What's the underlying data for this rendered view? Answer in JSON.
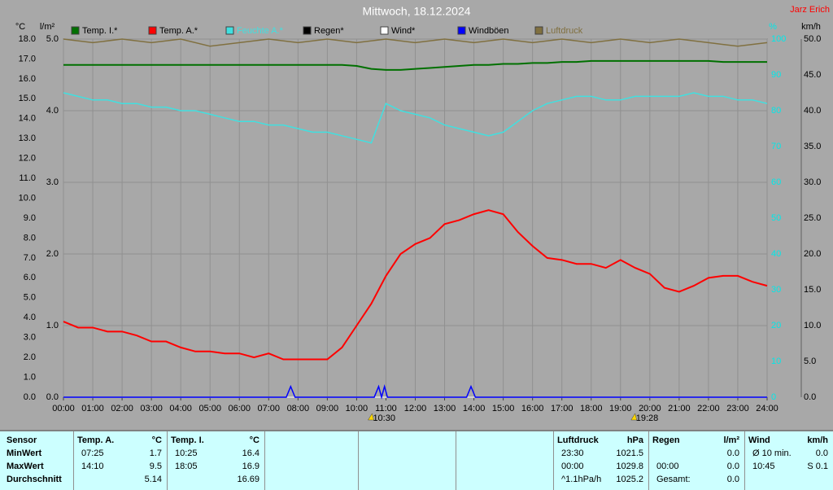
{
  "chart_data": {
    "type": "line",
    "title": "Mittwoch, 18.12.2024",
    "author": "Jarz Erich",
    "x": [
      0,
      0.5,
      1,
      1.5,
      2,
      2.5,
      3,
      3.5,
      4,
      4.5,
      5,
      5.5,
      6,
      6.5,
      7,
      7.5,
      8,
      8.5,
      9,
      9.5,
      10,
      10.5,
      11,
      11.5,
      12,
      12.5,
      13,
      13.5,
      14,
      14.5,
      15,
      15.5,
      16,
      16.5,
      17,
      17.5,
      18,
      18.5,
      19,
      19.5,
      20,
      20.5,
      21,
      21.5,
      22,
      22.5,
      23,
      23.5,
      24
    ],
    "xlim": [
      0,
      24
    ],
    "xticks": [
      {
        "value": 0,
        "label": "00:00"
      },
      {
        "value": 1,
        "label": "01:00"
      },
      {
        "value": 2,
        "label": "02:00"
      },
      {
        "value": 3,
        "label": "03:00"
      },
      {
        "value": 4,
        "label": "04:00"
      },
      {
        "value": 5,
        "label": "05:00"
      },
      {
        "value": 6,
        "label": "06:00"
      },
      {
        "value": 7,
        "label": "07:00"
      },
      {
        "value": 8,
        "label": "08:00"
      },
      {
        "value": 9,
        "label": "09:00"
      },
      {
        "value": 10,
        "label": "10:00"
      },
      {
        "value": 11,
        "label": "11:00"
      },
      {
        "value": 12,
        "label": "12:00"
      },
      {
        "value": 13,
        "label": "13:00"
      },
      {
        "value": 14,
        "label": "14:00"
      },
      {
        "value": 15,
        "label": "15:00"
      },
      {
        "value": 16,
        "label": "16:00"
      },
      {
        "value": 17,
        "label": "17:00"
      },
      {
        "value": 18,
        "label": "18:00"
      },
      {
        "value": 19,
        "label": "19:00"
      },
      {
        "value": 20,
        "label": "20:00"
      },
      {
        "value": 21,
        "label": "21:00"
      },
      {
        "value": 22,
        "label": "22:00"
      },
      {
        "value": 23,
        "label": "23:00"
      },
      {
        "value": 24,
        "label": "24:00"
      }
    ],
    "ylabel": "°C",
    "ylim": [
      0,
      18
    ],
    "yticks": [
      {
        "value": 0,
        "label": "0.0"
      },
      {
        "value": 1,
        "label": "1.0"
      },
      {
        "value": 2,
        "label": "2.0"
      },
      {
        "value": 3,
        "label": "3.0"
      },
      {
        "value": 4,
        "label": "4.0"
      },
      {
        "value": 5,
        "label": "5.0"
      },
      {
        "value": 6,
        "label": "6.0"
      },
      {
        "value": 7,
        "label": "7.0"
      },
      {
        "value": 8,
        "label": "8.0"
      },
      {
        "value": 9,
        "label": "9.0"
      },
      {
        "value": 10,
        "label": "10.0"
      },
      {
        "value": 11,
        "label": "11.0"
      },
      {
        "value": 12,
        "label": "12.0"
      },
      {
        "value": 13,
        "label": "13.0"
      },
      {
        "value": 14,
        "label": "14.0"
      },
      {
        "value": 15,
        "label": "15.0"
      },
      {
        "value": 16,
        "label": "16.0"
      },
      {
        "value": 17,
        "label": "17.0"
      },
      {
        "value": 18,
        "label": "18.0"
      }
    ],
    "y2label": "l/m²",
    "y2lim": [
      0,
      5
    ],
    "y2ticks": [
      {
        "value": 0,
        "label": "0.0"
      },
      {
        "value": 1,
        "label": "1.0"
      },
      {
        "value": 2,
        "label": "2.0"
      },
      {
        "value": 3,
        "label": "3.0"
      },
      {
        "value": 4,
        "label": "4.0"
      },
      {
        "value": 5,
        "label": "5.0"
      }
    ],
    "y3label": "%",
    "y3lim": [
      0,
      100
    ],
    "y3color": "#00e8e8",
    "y3ticks": [
      0,
      10,
      20,
      30,
      40,
      50,
      60,
      70,
      80,
      90,
      100
    ],
    "y4label": "km/h",
    "y4lim": [
      0,
      50
    ],
    "y4ticks": [
      {
        "value": 0,
        "label": "0.0"
      },
      {
        "value": 5,
        "label": "5.0"
      },
      {
        "value": 10,
        "label": "10.0"
      },
      {
        "value": 15,
        "label": "15.0"
      },
      {
        "value": 20,
        "label": "20.0"
      },
      {
        "value": 25,
        "label": "25.0"
      },
      {
        "value": 30,
        "label": "30.0"
      },
      {
        "value": 35,
        "label": "35.0"
      },
      {
        "value": 40,
        "label": "40.0"
      },
      {
        "value": 45,
        "label": "45.0"
      },
      {
        "value": 50,
        "label": "50.0"
      }
    ],
    "grid": true,
    "series": [
      {
        "name": "Temp. I.*",
        "color": "#007000",
        "axis": "y",
        "values": [
          16.7,
          16.7,
          16.7,
          16.7,
          16.7,
          16.7,
          16.7,
          16.7,
          16.7,
          16.7,
          16.7,
          16.7,
          16.7,
          16.7,
          16.7,
          16.7,
          16.7,
          16.7,
          16.7,
          16.7,
          16.65,
          16.5,
          16.45,
          16.45,
          16.5,
          16.55,
          16.6,
          16.65,
          16.7,
          16.7,
          16.75,
          16.75,
          16.8,
          16.8,
          16.85,
          16.85,
          16.9,
          16.9,
          16.9,
          16.9,
          16.9,
          16.9,
          16.9,
          16.9,
          16.9,
          16.85,
          16.85,
          16.85,
          16.85
        ]
      },
      {
        "name": "Temp. A.*",
        "color": "#ff0000",
        "axis": "y",
        "values": [
          3.8,
          3.5,
          3.5,
          3.3,
          3.3,
          3.1,
          2.8,
          2.8,
          2.5,
          2.3,
          2.3,
          2.2,
          2.2,
          2.0,
          2.2,
          1.9,
          1.9,
          1.9,
          1.9,
          2.5,
          3.6,
          4.7,
          6.1,
          7.2,
          7.7,
          8.0,
          8.7,
          8.9,
          9.2,
          9.4,
          9.2,
          8.3,
          7.6,
          7.0,
          6.9,
          6.7,
          6.7,
          6.5,
          6.9,
          6.5,
          6.2,
          5.5,
          5.3,
          5.6,
          6.0,
          6.1,
          6.1,
          5.8,
          5.6
        ]
      },
      {
        "name": "Feuchte A.*",
        "color": "#40e0e0",
        "axis": "y3",
        "values": [
          85,
          84,
          83,
          83,
          82,
          82,
          81,
          81,
          80,
          80,
          79,
          78,
          77,
          77,
          76,
          76,
          75,
          74,
          74,
          73,
          72,
          71,
          82,
          80,
          79,
          78,
          76,
          75,
          74,
          73,
          74,
          77,
          80,
          82,
          83,
          84,
          84,
          83,
          83,
          84,
          84,
          84,
          84,
          85,
          84,
          84,
          83,
          83,
          82
        ]
      },
      {
        "name": "Regen*",
        "color": "#000000",
        "axis": "y2",
        "x": [
          0,
          24
        ],
        "values": [
          0,
          0
        ]
      },
      {
        "name": "Wind*",
        "color": "#ffffff",
        "axis": "y4",
        "x": [
          0,
          24
        ],
        "values": [
          0,
          0
        ]
      },
      {
        "name": "Windböen",
        "color": "#0000ff",
        "axis": "y4",
        "x": [
          0,
          7.6,
          7.75,
          7.9,
          10.6,
          10.75,
          10.85,
          10.95,
          11.05,
          13.75,
          13.9,
          14.05,
          24
        ],
        "values": [
          0,
          0,
          1.5,
          0,
          0,
          1.5,
          0,
          1.5,
          0,
          0,
          1.5,
          0,
          0
        ]
      },
      {
        "name": "Luftdruck",
        "color": "#807040",
        "axis": "y3",
        "x": [
          0,
          1,
          2,
          3,
          4,
          5,
          6,
          7,
          8,
          9,
          10,
          11,
          12,
          13,
          14,
          15,
          16,
          17,
          18,
          19,
          20,
          21,
          22,
          23,
          24
        ],
        "values": [
          100,
          99,
          100,
          99,
          100,
          98,
          99,
          100,
          99,
          100,
          99,
          100,
          99,
          100,
          99,
          100,
          99,
          100,
          99,
          100,
          99,
          100,
          99,
          98,
          99
        ]
      }
    ],
    "annotations": [
      {
        "text": "10:30",
        "x": 10.5
      },
      {
        "text": "19:28",
        "x": 19.47
      }
    ]
  },
  "table": {
    "row_labels": [
      "Sensor",
      "MinWert",
      "MaxWert",
      "Durchschnitt"
    ],
    "panels": [
      {
        "header": [
          "Temp. A.",
          "°C"
        ],
        "rows": [
          [
            "07:25",
            "1.7"
          ],
          [
            "14:10",
            "9.5"
          ],
          [
            null,
            "5.14"
          ]
        ]
      },
      {
        "header": [
          "Temp. I.",
          "°C"
        ],
        "rows": [
          [
            "10:25",
            "16.4"
          ],
          [
            "18:05",
            "16.9"
          ],
          [
            null,
            "16.69"
          ]
        ]
      },
      {
        "header": [
          "Luftdruck",
          "hPa"
        ],
        "rows": [
          [
            "23:30",
            "1021.5"
          ],
          [
            "00:00",
            "1029.8"
          ],
          [
            "^1.1hPa/h",
            "1025.2"
          ]
        ]
      },
      {
        "header": [
          "Regen",
          "l/m²"
        ],
        "rows": [
          [
            null,
            "0.0"
          ],
          [
            "00:00",
            "0.0"
          ],
          [
            "Gesamt:",
            "0.0"
          ]
        ]
      },
      {
        "header": [
          "Wind",
          "km/h"
        ],
        "rows": [
          [
            "Ø 10 min.",
            "0.0"
          ],
          [
            "10:45",
            "S 0.1"
          ]
        ]
      }
    ]
  }
}
